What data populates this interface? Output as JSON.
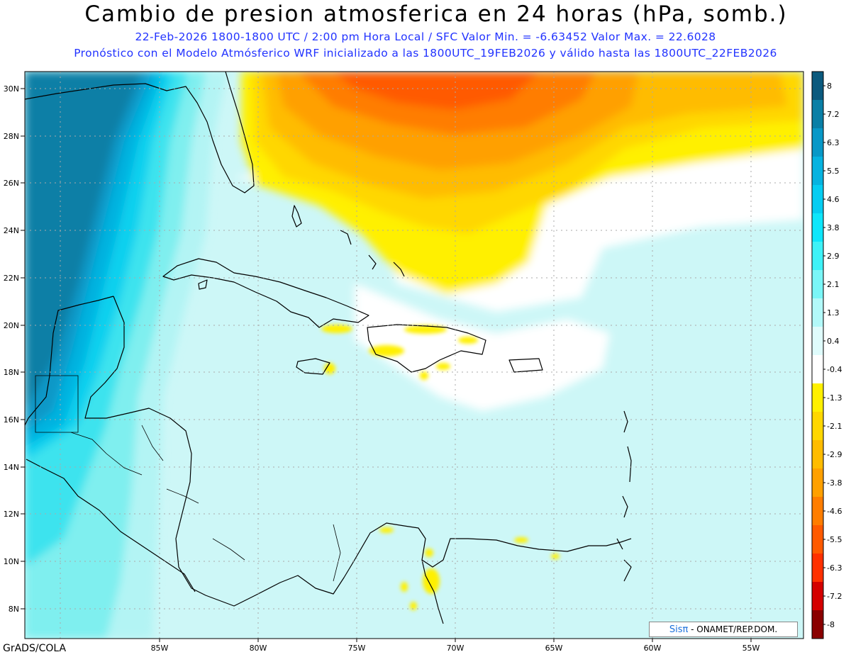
{
  "header": {
    "title": "Cambio de presion atmosferica en 24 horas (hPa, somb.)",
    "subtitle": "22-Feb-2026   1800-1800 UTC / 2:00 pm Hora Local / SFC    Valor Min. = -6.63452  Valor Max. = 22.6028",
    "forecast_note": "Pronóstico con el Modelo Atmósferico WRF inicializado a las 1800UTC_19FEB2026 y válido hasta las  1800UTC_22FEB2026"
  },
  "map": {
    "lon_labels": [
      "85W",
      "80W",
      "75W",
      "70W",
      "65W",
      "60W",
      "55W"
    ],
    "lat_labels": [
      "30N",
      "28N",
      "26N",
      "24N",
      "22N",
      "20N",
      "18N",
      "16N",
      "14N",
      "12N",
      "10N",
      "8N"
    ]
  },
  "colorbar": {
    "labels": [
      "8",
      "7.2",
      "6.3",
      "5.5",
      "4.6",
      "3.8",
      "2.9",
      "2.1",
      "1.3",
      "0.4",
      "-0.4",
      "-1.3",
      "-2.1",
      "-2.9",
      "-3.8",
      "-4.6",
      "-5.5",
      "-6.3",
      "-7.2",
      "-8"
    ],
    "colors": [
      "#0b5a7e",
      "#0a7fa6",
      "#0898c7",
      "#06b3e0",
      "#05cdf2",
      "#0ee6fb",
      "#3ef2f7",
      "#7af6f7",
      "#b2f9f9",
      "#dffcfc",
      "#ffffff",
      "#fff000",
      "#ffd700",
      "#ffbc00",
      "#ffa000",
      "#ff7d00",
      "#ff5a00",
      "#ff3000",
      "#d40000",
      "#8a0000"
    ]
  },
  "watermark": {
    "logo": "Sisπ",
    "text": " - ONAMET/REP.DOM."
  },
  "credit": "GrADS/COLA"
}
